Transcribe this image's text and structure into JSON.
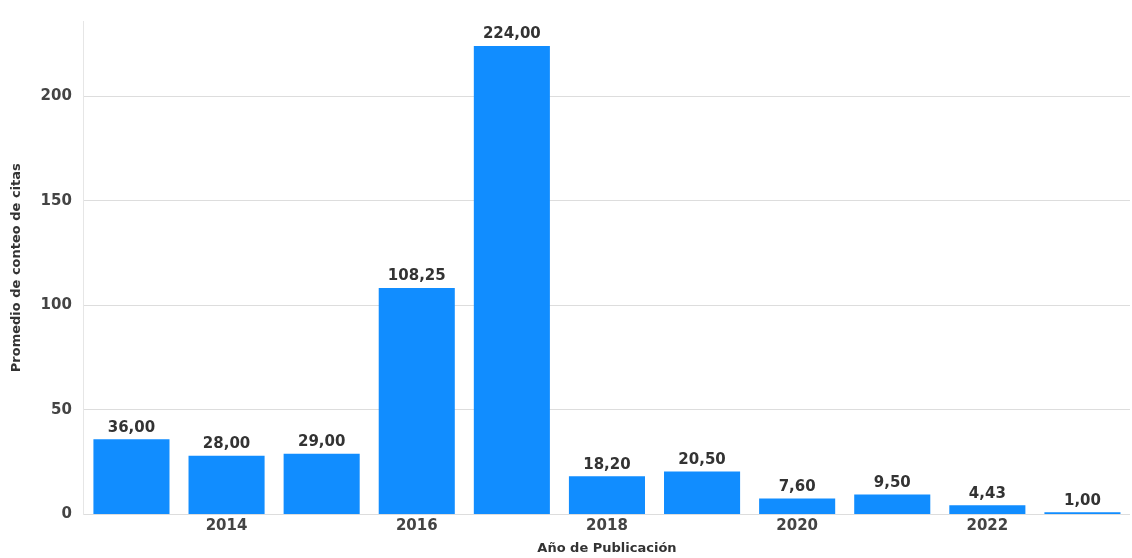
{
  "chart_data": {
    "type": "bar",
    "xlabel": "Año de Publicación",
    "ylabel": "Promedio de conteo de citas",
    "categories": [
      null,
      "2014",
      null,
      "2016",
      null,
      "2018",
      null,
      "2020",
      null,
      "2022",
      null
    ],
    "values": [
      36,
      28,
      29,
      108.25,
      224,
      18.2,
      20.5,
      7.6,
      9.5,
      4.43,
      1
    ],
    "value_labels": [
      "36,00",
      "28,00",
      "29,00",
      "108,25",
      "224,00",
      "18,20",
      "20,50",
      "7,60",
      "9,50",
      "4,43",
      "1,00"
    ],
    "color": "#118dff",
    "ylim": [
      0,
      236
    ],
    "yticks": [
      0,
      50,
      100,
      150,
      200
    ],
    "grid": "y",
    "legend": false
  }
}
